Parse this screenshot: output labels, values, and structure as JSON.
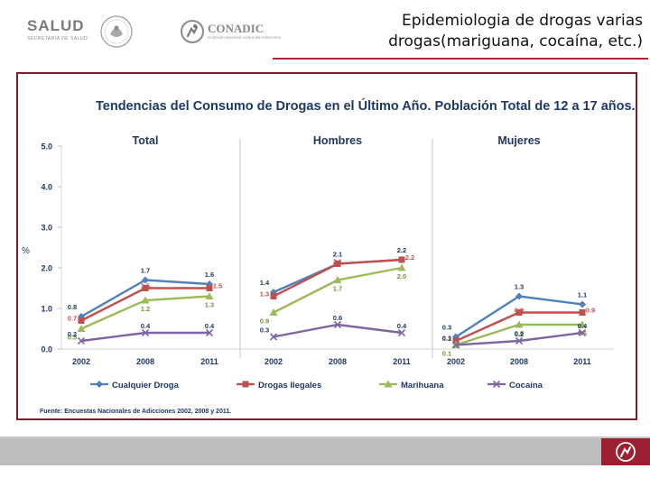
{
  "header": {
    "salud_logo": {
      "name": "SALUD",
      "sub": "SECRETARÍA DE SALUD"
    },
    "conadic_logo": {
      "name": "CONADIC",
      "sub": "Comisión Nacional contra las Adicciones"
    },
    "slide_title": "Epidemiologia de drogas varias drogas(mariguana, cocaína, etc.)"
  },
  "colors": {
    "accent": "#b0243a",
    "frame": "#7a1f2b",
    "footer": "#bdbdbd",
    "footer_logo": "#9c1f32"
  },
  "chart_data": {
    "type": "line",
    "title": "Tendencias del Consumo de Drogas en el Último Año. Población Total de 12 a 17 años.",
    "ylabel": "%",
    "ylim": [
      0,
      5
    ],
    "yticks": [
      "0.0",
      "1.0",
      "2.0",
      "3.0",
      "4.0",
      "5.0"
    ],
    "source": "Fuente: Encuestas Nacionales de Adicciones 2002, 2008 y 2011.",
    "categories": [
      "2002",
      "2008",
      "2011"
    ],
    "panels": [
      {
        "name": "Total",
        "series": [
          {
            "name": "Cualquier Droga",
            "values": [
              0.8,
              1.7,
              1.6
            ],
            "labels": [
              "0.8",
              "1.7",
              "1.6"
            ]
          },
          {
            "name": "Drogas Ilegales",
            "values": [
              0.7,
              1.5,
              1.5
            ],
            "labels": [
              "0.7",
              "1.5",
              "1.5"
            ]
          },
          {
            "name": "Marihuana",
            "values": [
              0.5,
              1.2,
              1.3
            ],
            "labels": [
              "0.5",
              "1.2",
              "1.3"
            ]
          },
          {
            "name": "Cocaína",
            "values": [
              0.2,
              0.4,
              0.4
            ],
            "labels": [
              "0.2",
              "0.4",
              "0.4"
            ]
          }
        ]
      },
      {
        "name": "Hombres",
        "series": [
          {
            "name": "Cualquier Droga",
            "values": [
              1.4,
              2.1,
              2.2
            ],
            "labels": [
              "1.4",
              "2.1",
              "2.2"
            ]
          },
          {
            "name": "Drogas Ilegales",
            "values": [
              1.3,
              2.1,
              2.2
            ],
            "labels": [
              "1.3",
              "2.1",
              "2.2"
            ]
          },
          {
            "name": "Marihuana",
            "values": [
              0.9,
              1.7,
              2.0
            ],
            "labels": [
              "0.9",
              "1.7",
              "2.0"
            ]
          },
          {
            "name": "Cocaína",
            "values": [
              0.3,
              0.6,
              0.4
            ],
            "labels": [
              "0.3",
              "0.6",
              "0.4"
            ]
          }
        ]
      },
      {
        "name": "Mujeres",
        "series": [
          {
            "name": "Cualquier Droga",
            "values": [
              0.3,
              1.3,
              1.1
            ],
            "labels": [
              "0.3",
              "1.3",
              "1.1"
            ]
          },
          {
            "name": "Drogas Ilegales",
            "values": [
              0.2,
              0.9,
              0.9
            ],
            "labels": [
              "0.2",
              "0.9",
              "0.9"
            ]
          },
          {
            "name": "Marihuana",
            "values": [
              0.1,
              0.6,
              0.6
            ],
            "labels": [
              "0.1",
              "0.6",
              "0.6"
            ]
          },
          {
            "name": "Cocaína",
            "values": [
              0.1,
              0.2,
              0.4
            ],
            "labels": [
              "0.1",
              "0.2",
              "0.4"
            ]
          }
        ]
      }
    ],
    "series_styles": [
      {
        "name": "Cualquier Droga",
        "color": "#4f81bd",
        "marker": "diamond"
      },
      {
        "name": "Drogas Ilegales",
        "color": "#c0504d",
        "marker": "square"
      },
      {
        "name": "Marihuana",
        "color": "#9bbb59",
        "marker": "triangle"
      },
      {
        "name": "Cocaína",
        "color": "#8064a2",
        "marker": "x"
      }
    ],
    "legend": [
      "Cualquier Droga",
      "Drogas Ilegales",
      "Marihuana",
      "Cocaína"
    ]
  }
}
